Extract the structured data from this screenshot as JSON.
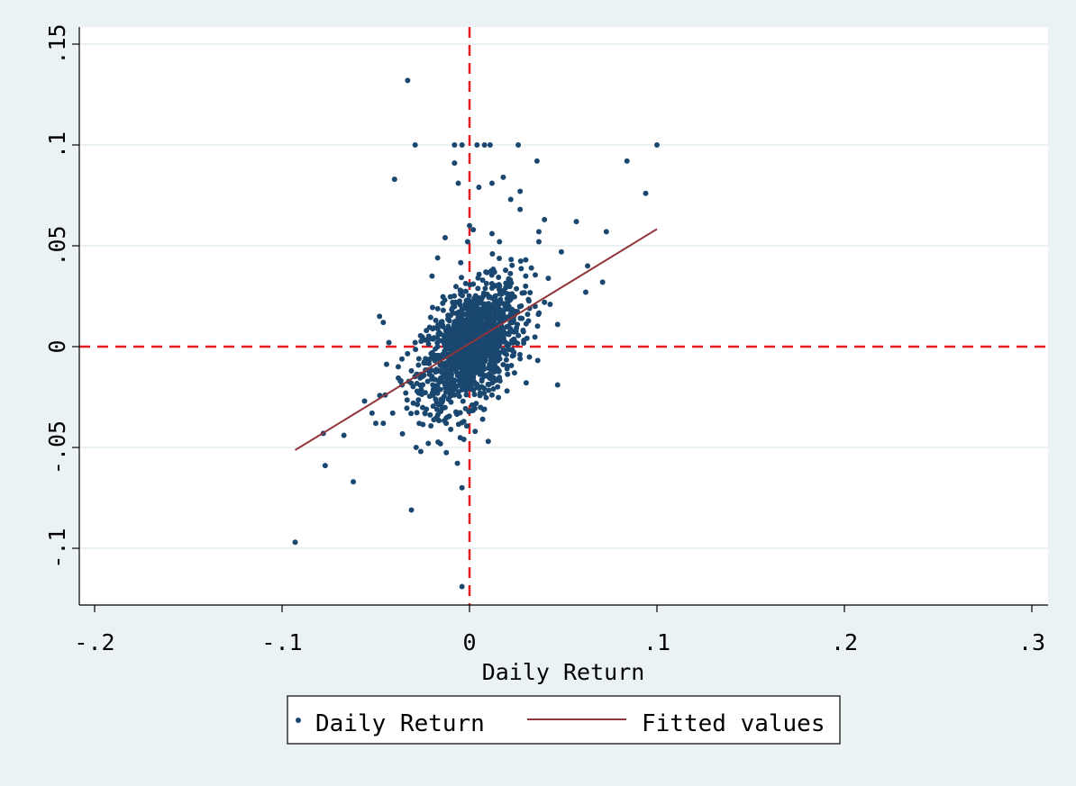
{
  "chart_data": {
    "type": "scatter",
    "xlabel": "Daily Return",
    "ylabel": "",
    "xlim": [
      -0.21,
      0.31
    ],
    "ylim": [
      -0.13,
      0.158
    ],
    "x_ticks": [
      {
        "value": -0.2,
        "label": "-.2"
      },
      {
        "value": -0.1,
        "label": "-.1"
      },
      {
        "value": 0,
        "label": "0"
      },
      {
        "value": 0.1,
        "label": ".1"
      },
      {
        "value": 0.2,
        "label": ".2"
      },
      {
        "value": 0.3,
        "label": ".3"
      }
    ],
    "y_ticks": [
      {
        "value": -0.1,
        "label": "-.1"
      },
      {
        "value": -0.05,
        "label": "-.05"
      },
      {
        "value": 0,
        "label": "0"
      },
      {
        "value": 0.05,
        "label": ".05"
      },
      {
        "value": 0.1,
        "label": ".1"
      },
      {
        "value": 0.15,
        "label": ".15"
      }
    ],
    "grid": "horizontal",
    "reference_lines": [
      {
        "axis": "x",
        "value": 0,
        "style": "dashed",
        "color": "#e41a1c"
      },
      {
        "axis": "y",
        "value": 0,
        "style": "dashed",
        "color": "#e41a1c"
      }
    ],
    "legend_position": "bottom-center",
    "series": [
      {
        "name": "Daily Return",
        "kind": "scatter",
        "color": "#1a476f",
        "points": [
          [
            -0.093,
            -0.097
          ],
          [
            -0.077,
            -0.059
          ],
          [
            -0.078,
            -0.043
          ],
          [
            -0.062,
            -0.067
          ],
          [
            -0.067,
            -0.044
          ],
          [
            -0.046,
            -0.038
          ],
          [
            -0.041,
            -0.033
          ],
          [
            -0.031,
            -0.081
          ],
          [
            -0.004,
            -0.119
          ],
          [
            -0.004,
            -0.07
          ],
          [
            0.01,
            -0.047
          ],
          [
            -0.033,
            0.132
          ],
          [
            -0.029,
            0.1
          ],
          [
            -0.04,
            0.083
          ],
          [
            -0.008,
            0.1
          ],
          [
            -0.004,
            0.1
          ],
          [
            0.004,
            0.1
          ],
          [
            0.008,
            0.1
          ],
          [
            0.011,
            0.1
          ],
          [
            0.026,
            0.1
          ],
          [
            0.1,
            0.1
          ],
          [
            0.084,
            0.092
          ],
          [
            0.094,
            0.076
          ],
          [
            0.036,
            0.092
          ],
          [
            -0.008,
            0.091
          ],
          [
            -0.006,
            0.081
          ],
          [
            0.005,
            0.079
          ],
          [
            0.012,
            0.081
          ],
          [
            0.018,
            0.084
          ],
          [
            0.022,
            0.073
          ],
          [
            0.027,
            0.077
          ],
          [
            0.027,
            0.068
          ],
          [
            0.037,
            0.057
          ],
          [
            0.037,
            0.052
          ],
          [
            0.04,
            0.063
          ],
          [
            0.057,
            0.062
          ],
          [
            0.073,
            0.057
          ],
          [
            0.049,
            0.047
          ],
          [
            0.063,
            0.04
          ],
          [
            0.062,
            0.027
          ],
          [
            0.071,
            0.032
          ],
          [
            0.047,
            0.011
          ],
          [
            0.047,
            -0.019
          ],
          [
            -0.048,
            0.015
          ],
          [
            -0.046,
            0.012
          ],
          [
            -0.045,
            -0.024
          ],
          [
            -0.05,
            -0.038
          ],
          [
            -0.043,
            0.002
          ],
          [
            -0.052,
            -0.033
          ],
          [
            -0.056,
            -0.027
          ],
          [
            -0.038,
            -0.01
          ],
          [
            -0.026,
            -0.052
          ],
          [
            -0.022,
            -0.048
          ],
          [
            -0.001,
            0.052
          ],
          [
            0.0,
            0.06
          ],
          [
            0.002,
            0.058
          ],
          [
            -0.013,
            0.054
          ],
          [
            0.012,
            0.056
          ],
          [
            0.016,
            0.052
          ],
          [
            -0.017,
            0.044
          ],
          [
            -0.02,
            0.035
          ],
          [
            0.03,
            0.043
          ],
          [
            0.03,
            0.035
          ],
          [
            0.033,
            0.039
          ],
          [
            0.04,
            0.022
          ],
          [
            0.043,
            0.021
          ],
          [
            0.035,
            0.02
          ],
          [
            0.031,
            0.016
          ],
          [
            0.028,
            0.014
          ],
          [
            0.021,
            0.006
          ],
          [
            0.027,
            -0.006
          ],
          [
            0.024,
            -0.013
          ],
          [
            0.015,
            -0.02
          ],
          [
            0.02,
            -0.022
          ],
          [
            0.012,
            -0.024
          ],
          [
            0.008,
            -0.031
          ],
          [
            0.007,
            -0.036
          ],
          [
            0.003,
            -0.042
          ],
          [
            -0.003,
            -0.046
          ],
          [
            -0.01,
            -0.041
          ],
          [
            -0.017,
            -0.036
          ],
          [
            -0.023,
            -0.031
          ],
          [
            -0.03,
            -0.028
          ],
          [
            -0.034,
            -0.023
          ],
          [
            -0.036,
            -0.019
          ],
          [
            -0.031,
            -0.012
          ],
          [
            -0.027,
            -0.006
          ],
          [
            -0.029,
            0.002
          ],
          [
            -0.023,
            0.008
          ],
          [
            -0.018,
            0.013
          ],
          [
            -0.014,
            0.018
          ],
          [
            -0.009,
            0.022
          ],
          [
            -0.005,
            0.028
          ],
          [
            0.002,
            0.031
          ],
          [
            0.007,
            0.033
          ],
          [
            0.012,
            0.029
          ],
          [
            0.017,
            0.026
          ],
          [
            0.021,
            0.02
          ],
          [
            0.023,
            0.012
          ],
          [
            0.018,
            0.008
          ],
          [
            0.014,
            0.003
          ],
          [
            0.01,
            -0.004
          ],
          [
            0.006,
            -0.01
          ],
          [
            0.002,
            -0.015
          ],
          [
            -0.003,
            -0.02
          ],
          [
            -0.008,
            -0.024
          ],
          [
            -0.013,
            -0.018
          ],
          [
            -0.018,
            -0.012
          ],
          [
            -0.021,
            -0.006
          ],
          [
            -0.017,
            0.0
          ],
          [
            -0.012,
            0.006
          ],
          [
            -0.007,
            0.011
          ],
          [
            -0.002,
            0.016
          ],
          [
            0.003,
            0.02
          ],
          [
            0.008,
            0.017
          ],
          [
            0.012,
            0.012
          ],
          [
            0.014,
            0.006
          ],
          [
            0.011,
            0.0
          ],
          [
            0.007,
            -0.005
          ],
          [
            0.003,
            -0.009
          ],
          [
            -0.002,
            -0.012
          ],
          [
            -0.006,
            -0.008
          ],
          [
            -0.01,
            -0.004
          ],
          [
            -0.008,
            0.002
          ],
          [
            -0.004,
            0.006
          ],
          [
            0.0,
            0.009
          ],
          [
            0.004,
            0.008
          ],
          [
            0.007,
            0.004
          ],
          [
            0.005,
            -0.001
          ],
          [
            0.001,
            -0.004
          ],
          [
            -0.003,
            -0.002
          ],
          [
            -0.001,
            0.002
          ],
          [
            0.002,
            0.003
          ],
          [
            0.0,
            0.0
          ]
        ]
      },
      {
        "name": "Fitted values",
        "kind": "line",
        "color": "#90353b",
        "points": [
          [
            -0.093,
            -0.0513
          ],
          [
            0.1,
            0.0583
          ]
        ]
      }
    ],
    "legend": [
      {
        "label": "Daily Return",
        "marker": "dot",
        "color": "#1a476f"
      },
      {
        "label": "Fitted values",
        "marker": "line",
        "color": "#90353b"
      }
    ]
  }
}
